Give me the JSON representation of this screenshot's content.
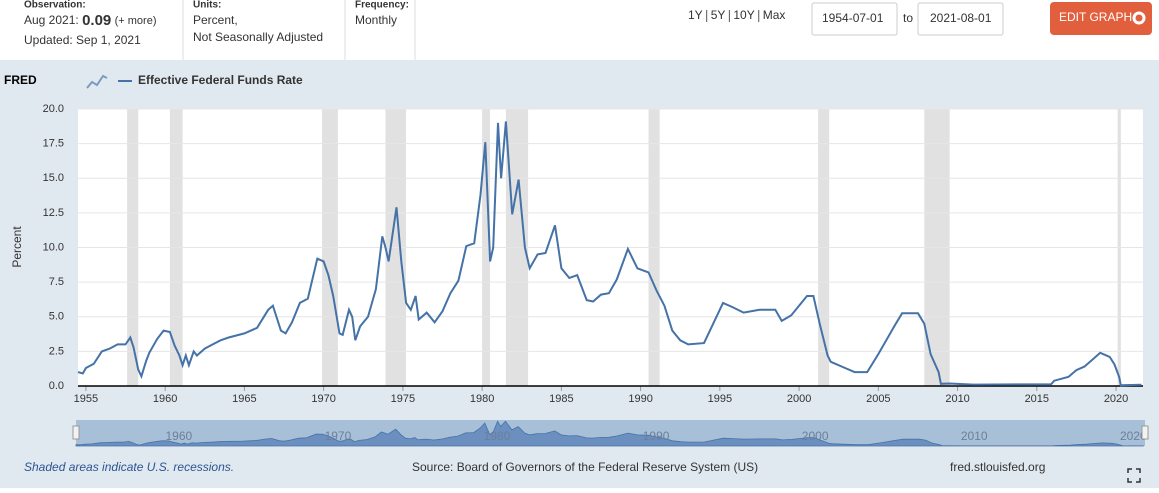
{
  "header": {
    "observation_label": "Observation:",
    "observation_period": "Aug 2021:",
    "observation_value": 0.09,
    "more": "(+ more)",
    "updated": "Updated: Sep 1, 2021",
    "units_label": "Units:",
    "units_line1": "Percent,",
    "units_line2": "Not Seasonally Adjusted",
    "frequency_label": "Frequency:",
    "frequency": "Monthly",
    "ranges": [
      "1Y",
      "5Y",
      "10Y",
      "Max"
    ],
    "start_date": "1954-07-01",
    "to": "to",
    "end_date": "2021-08-01",
    "edit_button": "EDIT GRAPH"
  },
  "logo": "FRED",
  "footer": {
    "note": "Shaded areas indicate U.S. recessions.",
    "source": "Source: Board of Governors of the Federal Reserve System (US)",
    "site": "fred.stlouisfed.org"
  },
  "chart_data": {
    "type": "line",
    "ylabel": "Percent",
    "xlim": [
      1954.5,
      2021.7
    ],
    "xticks": [
      1955,
      1960,
      1965,
      1970,
      1975,
      1980,
      1985,
      1990,
      1995,
      2000,
      2005,
      2010,
      2015,
      2020
    ],
    "ylim": [
      0,
      20
    ],
    "yticks": [
      {
        "value": 0,
        "label": "0.0"
      },
      {
        "value": 2.5,
        "label": "2.5"
      },
      {
        "value": 5,
        "label": "5.0"
      },
      {
        "value": 7.5,
        "label": "7.5"
      },
      {
        "value": 10,
        "label": "10.0"
      },
      {
        "value": 12.5,
        "label": "12.5"
      },
      {
        "value": 15,
        "label": "15.0"
      },
      {
        "value": 17.5,
        "label": "17.5"
      },
      {
        "value": 20,
        "label": "20.0"
      }
    ],
    "grid": true,
    "recessions": [
      [
        1957.6,
        1958.3
      ],
      [
        1960.3,
        1961.1
      ],
      [
        1969.9,
        1970.9
      ],
      [
        1973.9,
        1975.2
      ],
      [
        1980.0,
        1980.5
      ],
      [
        1981.5,
        1982.9
      ],
      [
        1990.5,
        1991.2
      ],
      [
        2001.2,
        2001.9
      ],
      [
        2007.9,
        2009.5
      ],
      [
        2020.1,
        2020.3
      ]
    ],
    "navigator_ticks": [
      1960,
      1970,
      1980,
      1990,
      2000,
      2010,
      2020
    ],
    "x": [
      1954.5,
      1954.8,
      1955.0,
      1955.5,
      1956.0,
      1956.5,
      1957.0,
      1957.5,
      1957.8,
      1958.0,
      1958.3,
      1958.5,
      1958.8,
      1959.0,
      1959.5,
      1959.9,
      1960.3,
      1960.6,
      1960.9,
      1961.1,
      1961.3,
      1961.5,
      1961.8,
      1962.0,
      1962.5,
      1963.0,
      1963.5,
      1964.0,
      1965.0,
      1965.8,
      1966.5,
      1966.8,
      1967.3,
      1967.6,
      1968.0,
      1968.5,
      1969.0,
      1969.6,
      1970.0,
      1970.3,
      1970.6,
      1971.0,
      1971.2,
      1971.6,
      1971.8,
      1972.0,
      1972.3,
      1972.8,
      1973.3,
      1973.7,
      1973.9,
      1974.1,
      1974.6,
      1974.9,
      1975.2,
      1975.5,
      1975.8,
      1976.0,
      1976.5,
      1977.0,
      1977.5,
      1978.0,
      1978.5,
      1979.0,
      1979.5,
      1979.9,
      1980.2,
      1980.5,
      1980.7,
      1981.0,
      1981.2,
      1981.5,
      1981.9,
      1982.3,
      1982.7,
      1983.0,
      1983.5,
      1984.0,
      1984.6,
      1985.0,
      1985.5,
      1986.0,
      1986.6,
      1987.0,
      1987.5,
      1988.0,
      1988.5,
      1989.2,
      1989.8,
      1990.5,
      1991.0,
      1991.5,
      1992.0,
      1992.5,
      1993.0,
      1994.0,
      1994.5,
      1995.2,
      1995.8,
      1996.5,
      1997.5,
      1998.5,
      1998.9,
      1999.5,
      2000.5,
      2000.9,
      2001.3,
      2001.8,
      2002.0,
      2002.9,
      2003.5,
      2004.3,
      2005.0,
      2006.0,
      2006.5,
      2007.5,
      2007.9,
      2008.3,
      2008.8,
      2008.95,
      2009.5,
      2011.0,
      2015.9,
      2016.1,
      2017.0,
      2017.5,
      2018.0,
      2018.5,
      2019.0,
      2019.6,
      2019.9,
      2020.2,
      2020.3,
      2021.6
    ],
    "series": [
      {
        "name": "Effective Federal Funds Rate",
        "color": "#4572a7",
        "values": [
          1.0,
          0.9,
          1.3,
          1.6,
          2.5,
          2.7,
          3.0,
          3.0,
          3.5,
          2.8,
          1.2,
          0.7,
          1.8,
          2.4,
          3.4,
          4.0,
          3.9,
          2.9,
          2.2,
          1.5,
          2.2,
          1.5,
          2.5,
          2.2,
          2.7,
          3.0,
          3.3,
          3.5,
          3.8,
          4.2,
          5.5,
          5.8,
          4.0,
          3.8,
          4.6,
          6.0,
          6.3,
          9.2,
          9.0,
          8.0,
          6.5,
          3.8,
          3.7,
          5.5,
          5.0,
          3.3,
          4.3,
          5.0,
          7.0,
          10.8,
          10.0,
          9.0,
          12.9,
          9.0,
          6.0,
          5.5,
          6.5,
          4.8,
          5.3,
          4.6,
          5.4,
          6.7,
          7.6,
          10.1,
          10.3,
          13.8,
          17.6,
          9.0,
          10.0,
          19.0,
          15.0,
          19.1,
          12.4,
          14.9,
          10.0,
          8.5,
          9.5,
          9.6,
          11.6,
          8.5,
          7.8,
          8.0,
          6.2,
          6.1,
          6.6,
          6.7,
          7.7,
          9.9,
          8.5,
          8.2,
          6.9,
          5.8,
          4.0,
          3.3,
          3.0,
          3.1,
          4.3,
          6.0,
          5.7,
          5.3,
          5.5,
          5.5,
          4.7,
          5.1,
          6.5,
          6.5,
          4.5,
          2.2,
          1.75,
          1.3,
          1.0,
          1.0,
          2.3,
          4.3,
          5.25,
          5.25,
          4.5,
          2.3,
          1.0,
          0.16,
          0.18,
          0.1,
          0.12,
          0.38,
          0.66,
          1.15,
          1.4,
          1.9,
          2.4,
          2.1,
          1.55,
          0.65,
          0.05,
          0.09
        ]
      }
    ]
  }
}
